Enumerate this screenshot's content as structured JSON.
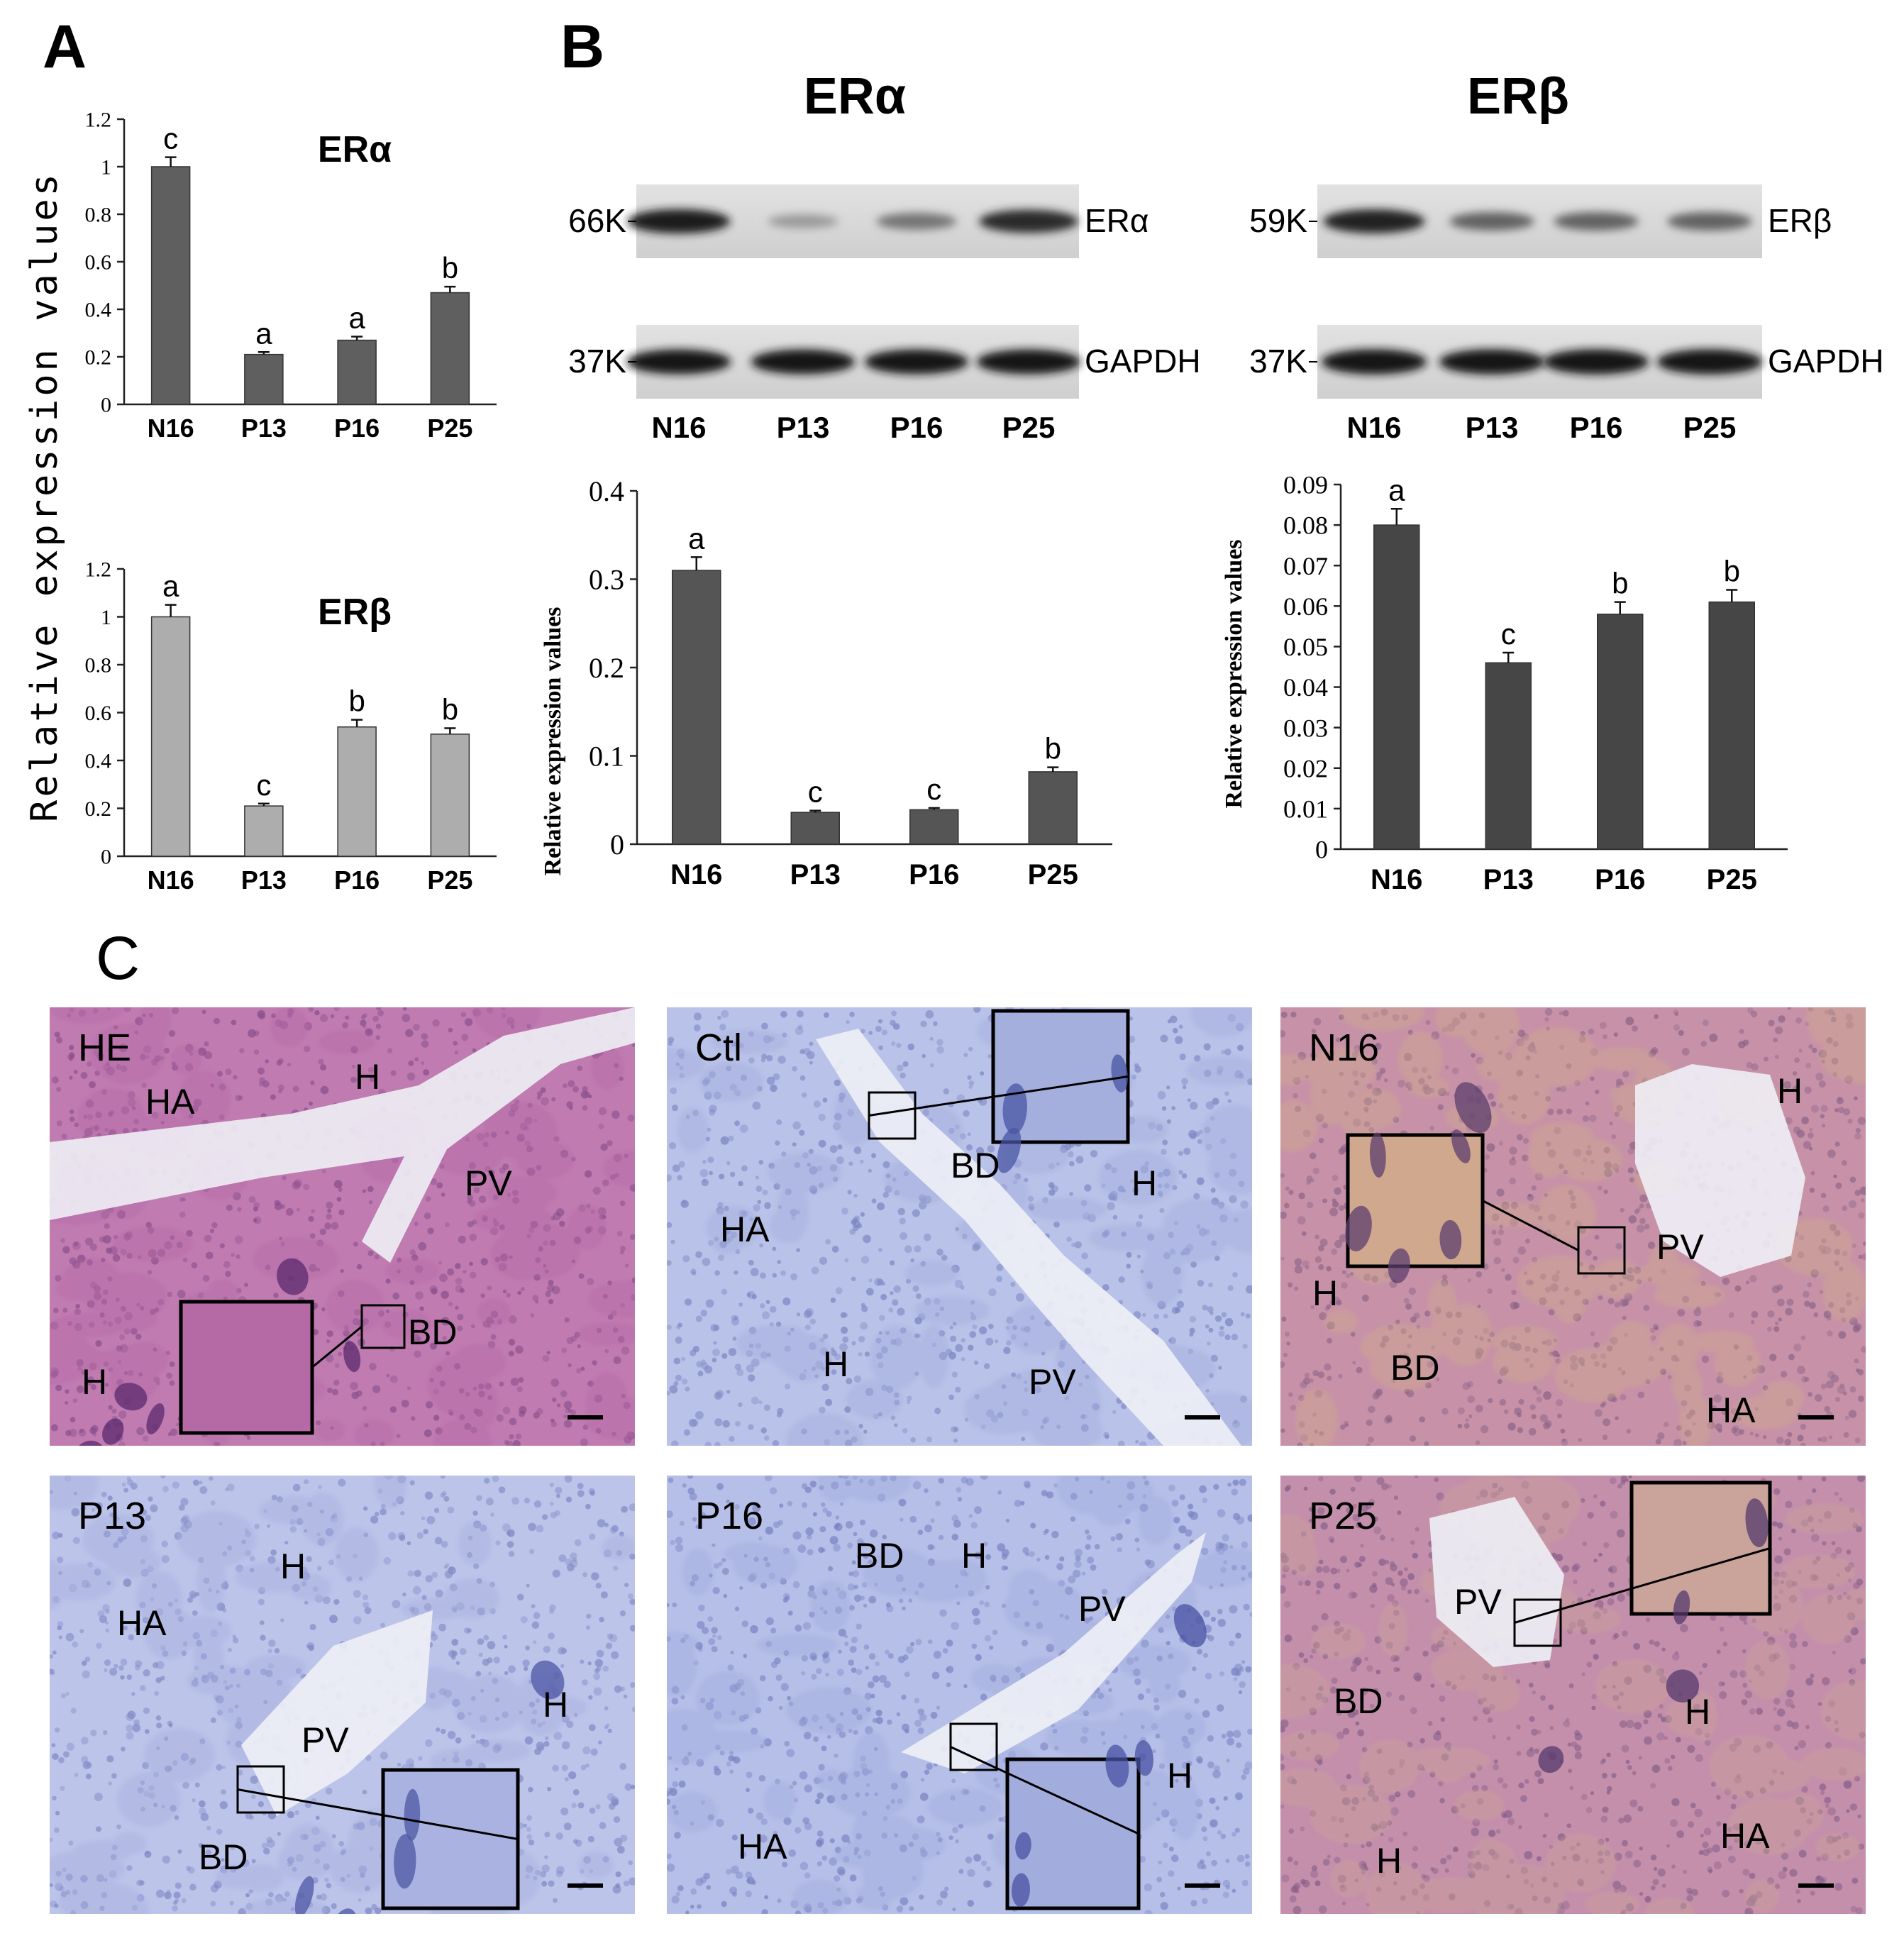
{
  "panel_labels": {
    "a": "A",
    "b": "B",
    "c": "C"
  },
  "panel_a": {
    "ylabel": "Relative expression values",
    "chart_data": [
      {
        "type": "bar",
        "title": "ERα",
        "categories": [
          "N16",
          "P13",
          "P16",
          "P25"
        ],
        "values": [
          1.0,
          0.21,
          0.27,
          0.47
        ],
        "errors": [
          0.04,
          0.01,
          0.015,
          0.025
        ],
        "letters": [
          "c",
          "a",
          "a",
          "b"
        ],
        "ylim": [
          0,
          1.2
        ],
        "yticks": [
          0,
          0.2,
          0.4,
          0.6,
          0.8,
          1,
          1.2
        ],
        "ytick_labels": [
          "0",
          "0.2",
          "0.4",
          "0.6",
          "0.8",
          "1",
          "1.2"
        ],
        "bar_color": "#5f5f5f"
      },
      {
        "type": "bar",
        "title": "ERβ",
        "categories": [
          "N16",
          "P13",
          "P16",
          "P25"
        ],
        "values": [
          1.0,
          0.21,
          0.54,
          0.51
        ],
        "errors": [
          0.05,
          0.01,
          0.03,
          0.025
        ],
        "letters": [
          "a",
          "c",
          "b",
          "b"
        ],
        "ylim": [
          0,
          1.2
        ],
        "yticks": [
          0,
          0.2,
          0.4,
          0.6,
          0.8,
          1,
          1.2
        ],
        "ytick_labels": [
          "0",
          "0.2",
          "0.4",
          "0.6",
          "0.8",
          "1",
          "1.2"
        ],
        "bar_color": "#adadad"
      }
    ]
  },
  "panel_b": {
    "blots": [
      {
        "title": "ERα",
        "rows": [
          {
            "marker": "66K",
            "label": "ERα",
            "band_intensity": [
              0.92,
              0.25,
              0.45,
              0.85
            ]
          },
          {
            "marker": "37K",
            "label": "GAPDH",
            "band_intensity": [
              0.95,
              0.95,
              0.95,
              0.95
            ]
          }
        ],
        "lanes": [
          "N16",
          "P13",
          "P16",
          "P25"
        ]
      },
      {
        "title": "ERβ",
        "rows": [
          {
            "marker": "59K",
            "label": "ERβ",
            "band_intensity": [
              0.9,
              0.55,
              0.55,
              0.55
            ]
          },
          {
            "marker": "37K",
            "label": "GAPDH",
            "band_intensity": [
              0.98,
              0.98,
              0.98,
              0.98
            ]
          }
        ],
        "lanes": [
          "N16",
          "P13",
          "P16",
          "P25"
        ]
      }
    ],
    "ylabel": "Relative expression values",
    "chart_data": [
      {
        "type": "bar",
        "categories": [
          "N16",
          "P13",
          "P16",
          "P25"
        ],
        "values": [
          0.31,
          0.036,
          0.039,
          0.082
        ],
        "errors": [
          0.015,
          0.002,
          0.002,
          0.005
        ],
        "letters": [
          "a",
          "c",
          "c",
          "b"
        ],
        "ylim": [
          0,
          0.4
        ],
        "yticks": [
          0,
          0.1,
          0.2,
          0.3,
          0.4
        ],
        "ytick_labels": [
          "0",
          "0.1",
          "0.2",
          "0.3",
          "0.4"
        ],
        "bar_color": "#555555"
      },
      {
        "type": "bar",
        "categories": [
          "N16",
          "P13",
          "P16",
          "P25"
        ],
        "values": [
          0.08,
          0.046,
          0.058,
          0.061
        ],
        "errors": [
          0.004,
          0.0025,
          0.003,
          0.003
        ],
        "letters": [
          "a",
          "c",
          "b",
          "b"
        ],
        "ylim": [
          0,
          0.09
        ],
        "yticks": [
          0,
          0.01,
          0.02,
          0.03,
          0.04,
          0.05,
          0.06,
          0.07,
          0.08,
          0.09
        ],
        "ytick_labels": [
          "0",
          "0.01",
          "0.02",
          "0.03",
          "0.04",
          "0.05",
          "0.06",
          "0.07",
          "0.08",
          "0.09"
        ],
        "bar_color": "#464646"
      }
    ]
  },
  "panel_c": {
    "micrographs": [
      {
        "id": "HE",
        "title": "HE",
        "stain": "he",
        "colors": {
          "bg": "#c07cb1",
          "tissue": "#b56aa6",
          "nuclei": "#5b2a6e"
        },
        "labels": [
          {
            "text": "H"
          },
          {
            "text": "HA"
          },
          {
            "text": "PV"
          },
          {
            "text": "BD"
          },
          {
            "text": "H"
          }
        ]
      },
      {
        "id": "Ctl",
        "title": "Ctl",
        "stain": "blue",
        "colors": {
          "bg": "#b9c2e8",
          "tissue": "#a5afdd",
          "nuclei": "#4a55a3"
        },
        "labels": [
          {
            "text": "BD"
          },
          {
            "text": "H"
          },
          {
            "text": "HA"
          },
          {
            "text": "H"
          },
          {
            "text": "PV"
          }
        ]
      },
      {
        "id": "N16",
        "title": "N16",
        "stain": "brown",
        "colors": {
          "bg": "#c792a8",
          "tissue": "#cfa88e",
          "nuclei": "#5d3f6d"
        },
        "labels": [
          {
            "text": "H"
          },
          {
            "text": "PV"
          },
          {
            "text": "H"
          },
          {
            "text": "BD"
          },
          {
            "text": "HA"
          }
        ]
      },
      {
        "id": "P13",
        "title": "P13",
        "stain": "blue",
        "colors": {
          "bg": "#bcc4ea",
          "tissue": "#a9b2e0",
          "nuclei": "#4d57a4"
        },
        "labels": [
          {
            "text": "H"
          },
          {
            "text": "HA"
          },
          {
            "text": "PV"
          },
          {
            "text": "H"
          },
          {
            "text": "BD"
          }
        ]
      },
      {
        "id": "P16",
        "title": "P16",
        "stain": "blue",
        "colors": {
          "bg": "#b6bfe8",
          "tissue": "#a3addd",
          "nuclei": "#4852a2"
        },
        "labels": [
          {
            "text": "BD"
          },
          {
            "text": "H"
          },
          {
            "text": "PV"
          },
          {
            "text": "H"
          },
          {
            "text": "HA"
          }
        ]
      },
      {
        "id": "P25",
        "title": "P25",
        "stain": "brown",
        "colors": {
          "bg": "#c48fab",
          "tissue": "#caa39a",
          "nuclei": "#55396e"
        },
        "labels": [
          {
            "text": "PV"
          },
          {
            "text": "BD"
          },
          {
            "text": "H"
          },
          {
            "text": "H"
          },
          {
            "text": "HA"
          }
        ]
      }
    ]
  }
}
